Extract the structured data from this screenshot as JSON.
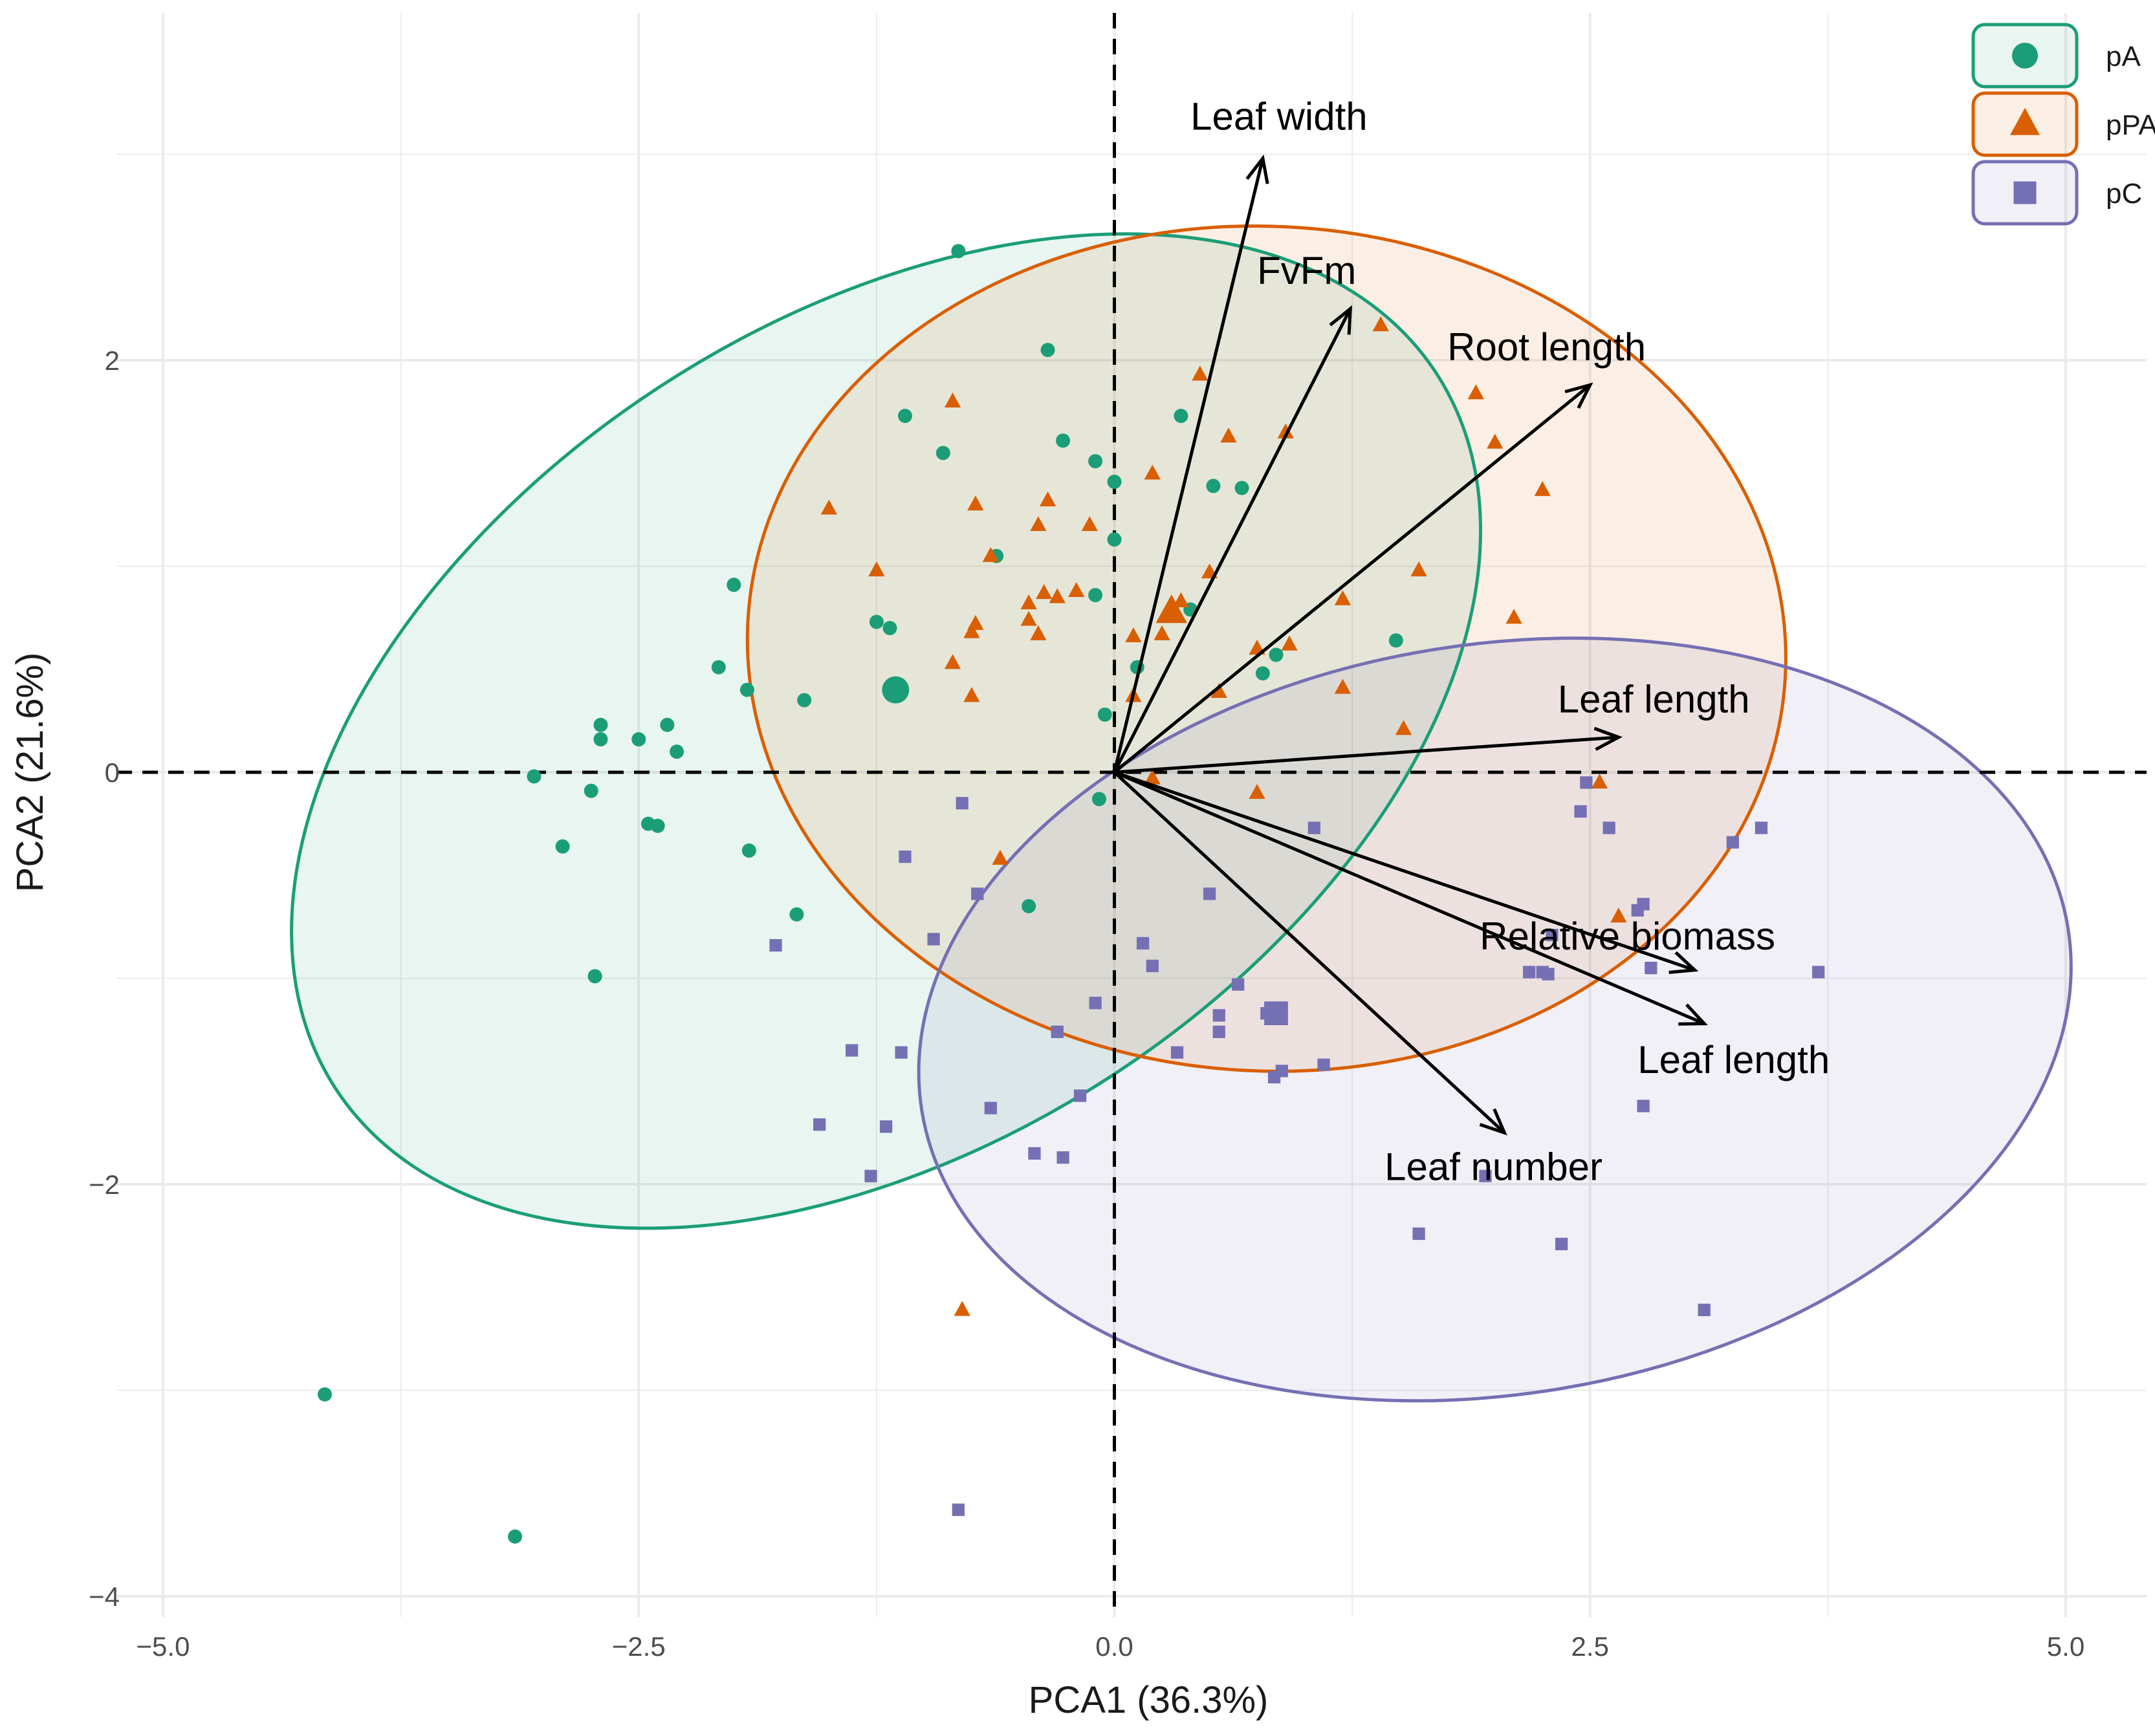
{
  "chart_data": {
    "type": "scatter",
    "title": "",
    "xlabel": "PCA1 (36.3%)",
    "ylabel": "PCA2 (21.6%)",
    "xlim": [
      -5.0,
      5.0
    ],
    "ylim": [
      -4.0,
      3.5
    ],
    "x_ticks": [
      -5.0,
      -2.5,
      0.0,
      2.5,
      5.0
    ],
    "x_tick_labels": [
      "−5.0",
      "−2.5",
      "0.0",
      "2.5",
      "5.0"
    ],
    "y_ticks": [
      -4,
      -2,
      0,
      2
    ],
    "y_tick_labels": [
      "−4",
      "−2",
      "0",
      "2"
    ],
    "grid": true,
    "legend_position": "top-right",
    "series": [
      {
        "name": "pA",
        "color": "#1b9e77",
        "marker": "circle",
        "centroid": [
          -1.15,
          0.4
        ],
        "ellipse": {
          "cx": -1.2,
          "cy": 0.2,
          "rx": 3.45,
          "ry": 2.0,
          "angle_deg": 33
        },
        "points": [
          [
            -0.82,
            2.53
          ],
          [
            -0.35,
            2.05
          ],
          [
            -1.1,
            1.73
          ],
          [
            0.35,
            1.73
          ],
          [
            -0.27,
            1.61
          ],
          [
            -0.9,
            1.55
          ],
          [
            -0.1,
            1.51
          ],
          [
            0.0,
            1.41
          ],
          [
            0.52,
            1.39
          ],
          [
            0.67,
            1.38
          ],
          [
            0.0,
            1.13
          ],
          [
            -0.62,
            1.05
          ],
          [
            -2.0,
            0.91
          ],
          [
            -0.1,
            0.86
          ],
          [
            0.4,
            0.79
          ],
          [
            -1.25,
            0.73
          ],
          [
            -1.18,
            0.7
          ],
          [
            -2.08,
            0.51
          ],
          [
            0.85,
            0.57
          ],
          [
            1.48,
            0.64
          ],
          [
            0.78,
            0.48
          ],
          [
            -1.93,
            0.4
          ],
          [
            -1.63,
            0.35
          ],
          [
            0.12,
            0.51
          ],
          [
            -0.05,
            0.28
          ],
          [
            -2.7,
            0.23
          ],
          [
            -2.7,
            0.16
          ],
          [
            -2.5,
            0.16
          ],
          [
            -2.35,
            0.23
          ],
          [
            -2.3,
            0.1
          ],
          [
            -3.05,
            -0.02
          ],
          [
            -2.75,
            -0.09
          ],
          [
            -2.45,
            -0.25
          ],
          [
            -2.4,
            -0.26
          ],
          [
            -2.9,
            -0.36
          ],
          [
            -1.92,
            -0.38
          ],
          [
            -0.08,
            -0.13
          ],
          [
            -1.67,
            -0.69
          ],
          [
            -0.45,
            -0.65
          ],
          [
            -2.73,
            -0.99
          ],
          [
            -4.15,
            -3.02
          ],
          [
            -3.15,
            -3.71
          ]
        ]
      },
      {
        "name": "pPA",
        "color": "#d95f02",
        "marker": "triangle",
        "centroid": [
          0.3,
          0.78
        ],
        "ellipse": {
          "cx": 0.8,
          "cy": 0.6,
          "rx": 2.73,
          "ry": 2.05,
          "angle_deg": -3
        },
        "points": [
          [
            1.4,
            2.17
          ],
          [
            0.45,
            1.93
          ],
          [
            1.9,
            1.84
          ],
          [
            -0.85,
            1.8
          ],
          [
            0.6,
            1.63
          ],
          [
            0.9,
            1.65
          ],
          [
            2.0,
            1.6
          ],
          [
            0.2,
            1.45
          ],
          [
            2.25,
            1.37
          ],
          [
            -1.5,
            1.28
          ],
          [
            -0.73,
            1.3
          ],
          [
            -0.35,
            1.32
          ],
          [
            -0.4,
            1.2
          ],
          [
            -0.13,
            1.2
          ],
          [
            -0.65,
            1.05
          ],
          [
            -1.25,
            0.98
          ],
          [
            0.5,
            0.97
          ],
          [
            1.6,
            0.98
          ],
          [
            -0.2,
            0.88
          ],
          [
            -0.37,
            0.87
          ],
          [
            -0.3,
            0.85
          ],
          [
            -0.45,
            0.82
          ],
          [
            0.35,
            0.83
          ],
          [
            1.2,
            0.84
          ],
          [
            -0.73,
            0.72
          ],
          [
            -0.75,
            0.68
          ],
          [
            -0.45,
            0.74
          ],
          [
            -0.4,
            0.67
          ],
          [
            0.1,
            0.66
          ],
          [
            0.25,
            0.67
          ],
          [
            2.1,
            0.75
          ],
          [
            0.75,
            0.6
          ],
          [
            0.92,
            0.62
          ],
          [
            -0.85,
            0.53
          ],
          [
            0.55,
            0.39
          ],
          [
            1.2,
            0.41
          ],
          [
            -0.75,
            0.37
          ],
          [
            0.1,
            0.37
          ],
          [
            1.52,
            0.21
          ],
          [
            0.2,
            -0.03
          ],
          [
            0.75,
            -0.1
          ],
          [
            2.55,
            -0.05
          ],
          [
            2.65,
            -0.7
          ],
          [
            -0.6,
            -0.42
          ],
          [
            -0.8,
            -2.61
          ]
        ]
      },
      {
        "name": "pC",
        "color": "#7570b3",
        "marker": "square",
        "centroid": [
          0.85,
          -1.17
        ],
        "ellipse": {
          "cx": 2.0,
          "cy": -1.2,
          "rx": 3.05,
          "ry": 1.82,
          "angle_deg": 9
        },
        "points": [
          [
            2.48,
            -0.05
          ],
          [
            2.45,
            -0.19
          ],
          [
            2.6,
            -0.27
          ],
          [
            1.05,
            -0.27
          ],
          [
            3.25,
            -0.34
          ],
          [
            3.4,
            -0.27
          ],
          [
            -0.8,
            -0.15
          ],
          [
            -1.1,
            -0.41
          ],
          [
            -0.72,
            -0.59
          ],
          [
            0.5,
            -0.59
          ],
          [
            2.75,
            -0.67
          ],
          [
            2.78,
            -0.64
          ],
          [
            -1.78,
            -0.84
          ],
          [
            -0.95,
            -0.81
          ],
          [
            0.15,
            -0.83
          ],
          [
            0.2,
            -0.94
          ],
          [
            2.3,
            -0.79
          ],
          [
            2.25,
            -0.97
          ],
          [
            2.18,
            -0.97
          ],
          [
            2.28,
            -0.98
          ],
          [
            2.82,
            -0.95
          ],
          [
            3.7,
            -0.97
          ],
          [
            0.65,
            -1.03
          ],
          [
            -0.1,
            -1.12
          ],
          [
            0.8,
            -1.17
          ],
          [
            0.85,
            -1.17
          ],
          [
            0.55,
            -1.18
          ],
          [
            -0.3,
            -1.26
          ],
          [
            0.55,
            -1.26
          ],
          [
            -1.38,
            -1.35
          ],
          [
            -1.12,
            -1.36
          ],
          [
            0.33,
            -1.36
          ],
          [
            1.1,
            -1.42
          ],
          [
            0.88,
            -1.45
          ],
          [
            0.84,
            -1.48
          ],
          [
            -0.18,
            -1.57
          ],
          [
            -0.65,
            -1.63
          ],
          [
            2.78,
            -1.62
          ],
          [
            -1.55,
            -1.71
          ],
          [
            -1.2,
            -1.72
          ],
          [
            -0.42,
            -1.85
          ],
          [
            -0.27,
            -1.87
          ],
          [
            -1.28,
            -1.96
          ],
          [
            1.95,
            -1.96
          ],
          [
            1.6,
            -2.24
          ],
          [
            2.35,
            -2.29
          ],
          [
            3.1,
            -2.61
          ],
          [
            -0.82,
            -3.58
          ]
        ]
      }
    ],
    "loadings": [
      {
        "name": "Leaf width",
        "x": 0.78,
        "y": 2.98,
        "label_x": 0.4,
        "label_y": 3.12,
        "label_anchor": "start"
      },
      {
        "name": "FvFm",
        "x": 1.24,
        "y": 2.25,
        "label_x": 0.75,
        "label_y": 2.37,
        "label_anchor": "start"
      },
      {
        "name": "Root length",
        "x": 2.5,
        "y": 1.88,
        "label_x": 1.75,
        "label_y": 2.0,
        "label_anchor": "start"
      },
      {
        "name": "Leaf length",
        "x": 2.65,
        "y": 0.17,
        "label_x": 2.33,
        "label_y": 0.29,
        "label_anchor": "start"
      },
      {
        "name": "Relative biomass",
        "x": 3.05,
        "y": -0.96,
        "label_x": 1.92,
        "label_y": -0.86,
        "label_anchor": "start"
      },
      {
        "name": "Leaf length",
        "x": 3.1,
        "y": -1.22,
        "label_x": 2.75,
        "label_y": -1.46,
        "label_anchor": "start"
      },
      {
        "name": "Leaf number",
        "x": 2.05,
        "y": -1.75,
        "label_x": 1.42,
        "label_y": -1.98,
        "label_anchor": "start"
      }
    ]
  }
}
